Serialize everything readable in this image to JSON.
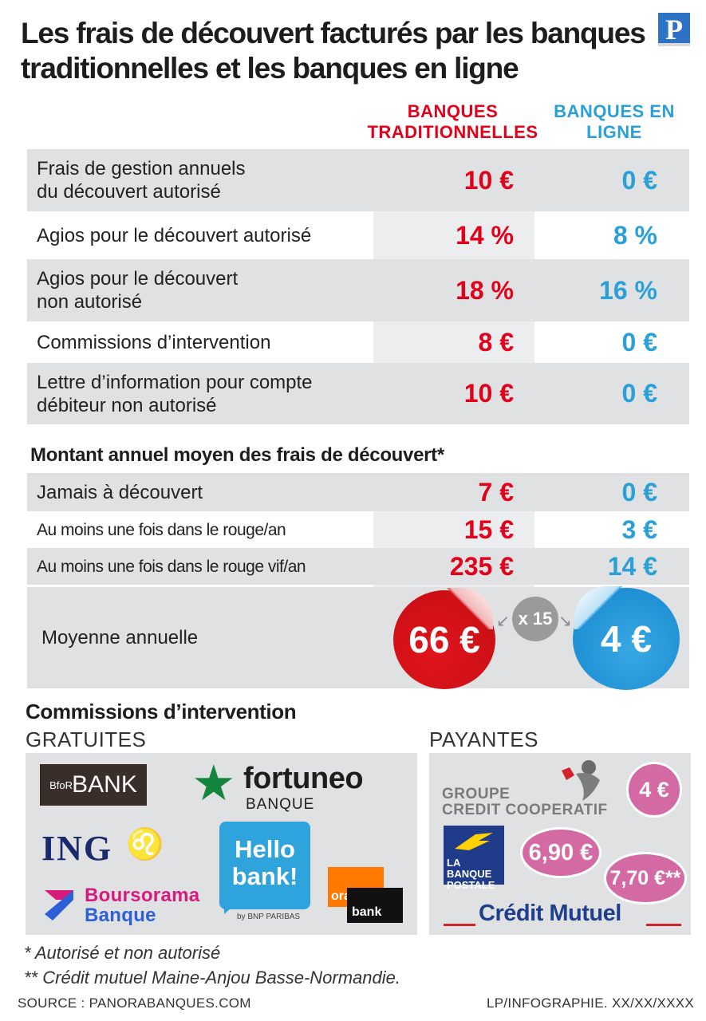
{
  "header": {
    "title": "Les frais de découvert facturés par les banques traditionnelles et les banques en ligne",
    "logo": "P"
  },
  "columns": {
    "traditional": "BANQUES TRADITIONNELLES",
    "online": "BANQUES EN LIGNE"
  },
  "colors": {
    "traditional": "#e2001a",
    "online": "#2aa0d8",
    "band": "#dfe1e3"
  },
  "chart_data": [
    {
      "type": "table",
      "title": "",
      "columns": [
        "BANQUES TRADITIONNELLES",
        "BANQUES EN LIGNE"
      ],
      "rows": [
        {
          "label": "Frais de gestion annuels\ndu découvert autorisé",
          "traditional": "10 €",
          "online": "0 €"
        },
        {
          "label": "Agios pour le découvert autorisé",
          "traditional": "14 %",
          "online": "8 %"
        },
        {
          "label": "Agios pour le découvert\nnon autorisé",
          "traditional": "18 %",
          "online": "16 %"
        },
        {
          "label": "Commissions d’intervention",
          "traditional": "8 €",
          "online": "0 €"
        },
        {
          "label": "Lettre d’information pour compte\ndébiteur non autorisé",
          "traditional": "10 €",
          "online": "0 €"
        }
      ]
    },
    {
      "type": "table",
      "title": "Montant annuel moyen des frais de découvert*",
      "columns": [
        "BANQUES TRADITIONNELLES",
        "BANQUES EN LIGNE"
      ],
      "rows": [
        {
          "label": "Jamais à découvert",
          "traditional": "7 €",
          "online": "0 €"
        },
        {
          "label": "Au moins une fois dans le rouge/an",
          "traditional": "15 €",
          "online": "3 €"
        },
        {
          "label": "Au moins une fois dans le rouge vif/an",
          "traditional": "235 €",
          "online": "14 €"
        }
      ],
      "average": {
        "label": "Moyenne annuelle",
        "traditional": "66 €",
        "online": "4 €",
        "ratio": "x 15"
      }
    }
  ],
  "commissions": {
    "title": "Commissions d’intervention",
    "free_label": "GRATUITES",
    "paid_label": "PAYANTES",
    "free_banks": {
      "bforbank": "BANK",
      "bforbank_prefix": "BfoR",
      "fortuneo": "fortuneo",
      "fortuneo_sub": "BANQUE",
      "ing": "ING",
      "hello": "Hello bank!",
      "hello_sub": "by BNP PARIBAS",
      "orange_top": "orange",
      "orange_bottom": "bank",
      "boursorama_1": "Boursorama",
      "boursorama_2": "Banque"
    },
    "paid_banks": {
      "groupe_1": "GROUPE",
      "groupe_2": "CREDIT COOPERATIF",
      "groupe_fee": "4 €",
      "bp_1": "LA",
      "bp_2": "BANQUE",
      "bp_3": "POSTALE",
      "bp_fee": "6,90 €",
      "cm": "Crédit Mutuel",
      "cm_fee": "7,70 €**"
    }
  },
  "footnotes": {
    "note1": "* Autorisé et non autorisé",
    "note2": "** Crédit mutuel Maine-Anjou Basse-Normandie.",
    "source": "SOURCE : PANORABANQUES.COM",
    "credit": "LP/INFOGRAPHIE.  XX/XX/XXXX"
  }
}
